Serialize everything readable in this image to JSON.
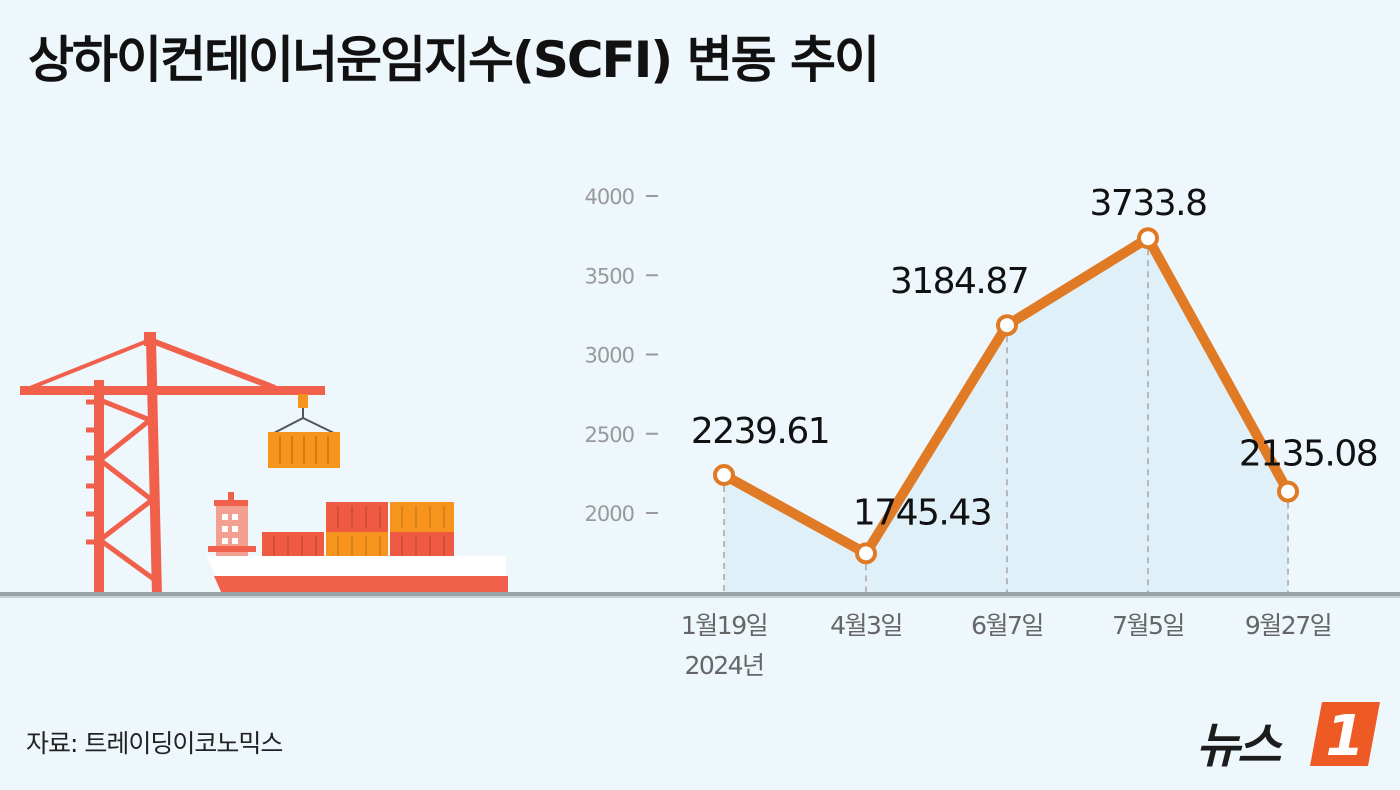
{
  "title": "상하이컨테이너운임지수(SCFI) 변동 추이",
  "source": "자료: 트레이딩이코노믹스",
  "logo_text": "뉴스",
  "logo_number": "1",
  "colors": {
    "background": "#eef7fc",
    "line": "#e07a24",
    "area": "#dff0f9",
    "crane": "#f0604a",
    "container_orange": "#f7941d",
    "container_red": "#ef5a42"
  },
  "chart_data": {
    "type": "line",
    "title": "상하이컨테이너운임지수(SCFI) 변동 추이",
    "categories": [
      "1월19일",
      "4월3일",
      "6월7일",
      "7월5일",
      "9월27일"
    ],
    "category_year_note": "2024년",
    "values": [
      2239.61,
      1745.43,
      3184.87,
      3733.8,
      2135.08
    ],
    "value_labels": [
      "2239.61",
      "1745.43",
      "3184.87",
      "3733.8",
      "2135.08"
    ],
    "yticks": [
      2000,
      2500,
      3000,
      3500,
      4000
    ],
    "ylim": [
      1500,
      4000
    ],
    "grid": false,
    "legend": "none"
  }
}
